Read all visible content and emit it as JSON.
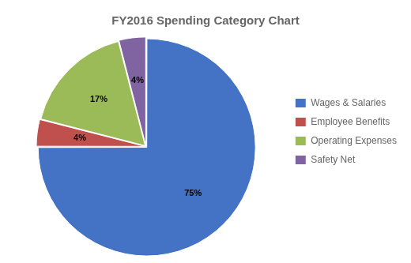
{
  "chart_data": {
    "type": "pie",
    "title": "FY2016 Spending Category Chart",
    "categories": [
      "Wages & Salaries",
      "Employee Benefits",
      "Operating Expenses",
      "Safety Net"
    ],
    "values": [
      75,
      4,
      17,
      4
    ],
    "value_labels": [
      "75%",
      "4%",
      "17%",
      "4%"
    ],
    "colors": [
      "#4472C4",
      "#C0504D",
      "#9BBB59",
      "#8064A2"
    ],
    "data_labels": true,
    "legend": "right"
  }
}
